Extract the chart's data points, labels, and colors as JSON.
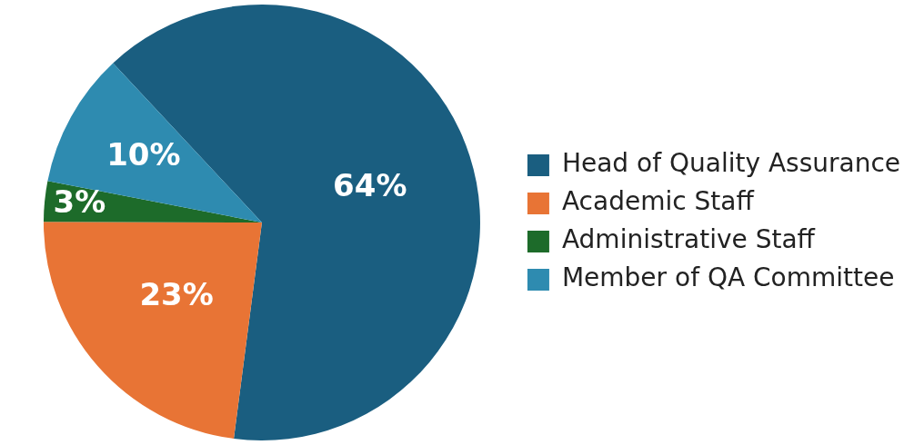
{
  "chart_data": {
    "type": "pie",
    "categories": [
      "Head of Quality Assurance",
      "Academic Staff",
      "Administrative Staff",
      "Member of QA Committee"
    ],
    "values": [
      64,
      23,
      3,
      10
    ],
    "colors": [
      "#1a5e80",
      "#e87435",
      "#1d6b2a",
      "#2e8bb0"
    ],
    "value_labels": [
      "64%",
      "23%",
      "3%",
      "10%"
    ],
    "legend": "right"
  }
}
